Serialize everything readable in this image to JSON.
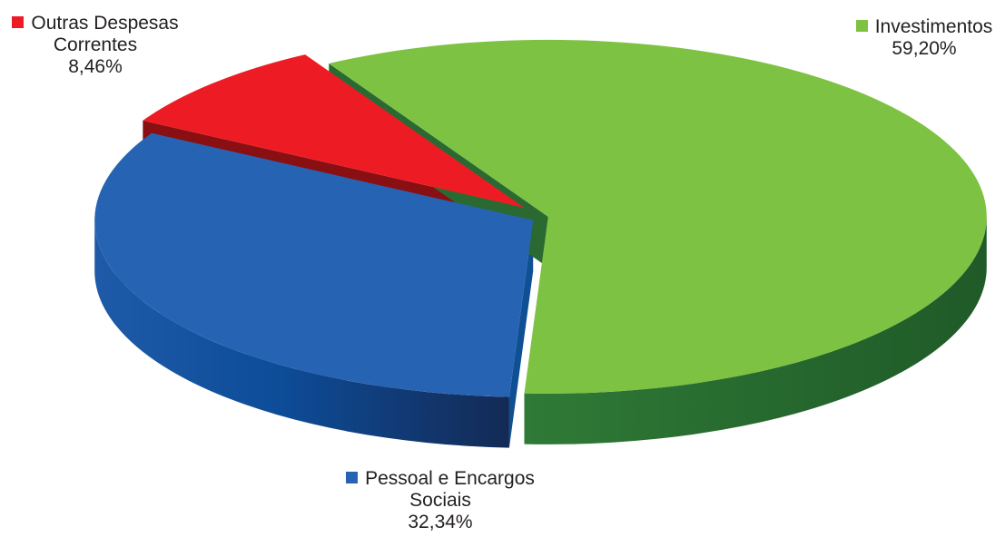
{
  "chart_data": {
    "type": "pie",
    "title": "",
    "categories": [
      "Investimentos",
      "Pessoal e Encargos Sociais",
      "Outras Despesas Correntes"
    ],
    "values": [
      59.2,
      32.34,
      8.46
    ],
    "value_labels": [
      "59,20%",
      "32,34%",
      "8,46%"
    ],
    "label_lines": [
      [
        "Investimentos",
        "59,20%"
      ],
      [
        "Pessoal e Encargos",
        "Sociais",
        "32,34%"
      ],
      [
        "Outras Despesas",
        "Correntes",
        "8,46%"
      ]
    ],
    "colors": [
      "#7dc242",
      "#2763b3",
      "#ed1c24"
    ],
    "side_colors": [
      "#2a6a32",
      "#0f4f94",
      "#8a0f12"
    ],
    "style": "3d-exploded",
    "legend": "none (labels next to slices)"
  }
}
